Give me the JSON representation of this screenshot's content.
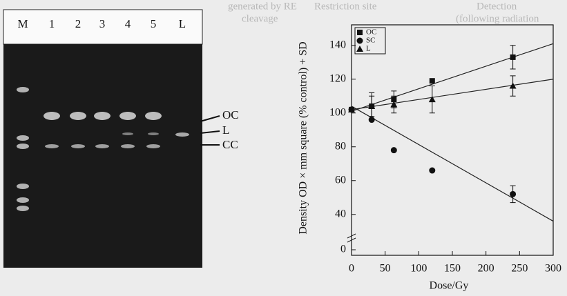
{
  "gel": {
    "lanes": [
      "M",
      "1",
      "2",
      "3",
      "4",
      "5",
      "L"
    ],
    "band_labels": [
      "OC",
      "L",
      "CC"
    ]
  },
  "background_text": [
    "Restriction site",
    "generated by RE",
    "cleavage",
    "Detection",
    "(following radiation"
  ],
  "chart_data": {
    "type": "scatter",
    "x_label": "Dose/Gy",
    "y_label": "Density OD × mm square (% control) + SD",
    "xlim": [
      0,
      300
    ],
    "xticks": [
      0,
      50,
      100,
      150,
      200,
      250,
      300
    ],
    "ylim": [
      0,
      150
    ],
    "yticks": [
      0,
      40,
      60,
      80,
      100,
      120,
      140
    ],
    "y_break": [
      0,
      35
    ],
    "legend": "upper-left",
    "series": [
      {
        "name": "OC",
        "marker": "square",
        "x": [
          0,
          30,
          63,
          120,
          240
        ],
        "values": [
          102,
          104,
          108,
          119,
          133
        ],
        "errors": [
          0,
          8,
          5,
          0,
          7
        ],
        "fit": [
          101,
          141
        ]
      },
      {
        "name": "SC",
        "marker": "circle",
        "x": [
          0,
          30,
          63,
          120,
          240
        ],
        "values": [
          102,
          96,
          78,
          66,
          52
        ],
        "errors": [
          0,
          0,
          0,
          0,
          5
        ],
        "fit": [
          104,
          36
        ]
      },
      {
        "name": "L",
        "marker": "triangle",
        "x": [
          0,
          30,
          63,
          120,
          240
        ],
        "values": [
          102,
          104,
          105,
          108,
          116
        ],
        "errors": [
          0,
          6,
          5,
          8,
          6
        ],
        "fit": [
          102,
          120
        ]
      }
    ]
  }
}
